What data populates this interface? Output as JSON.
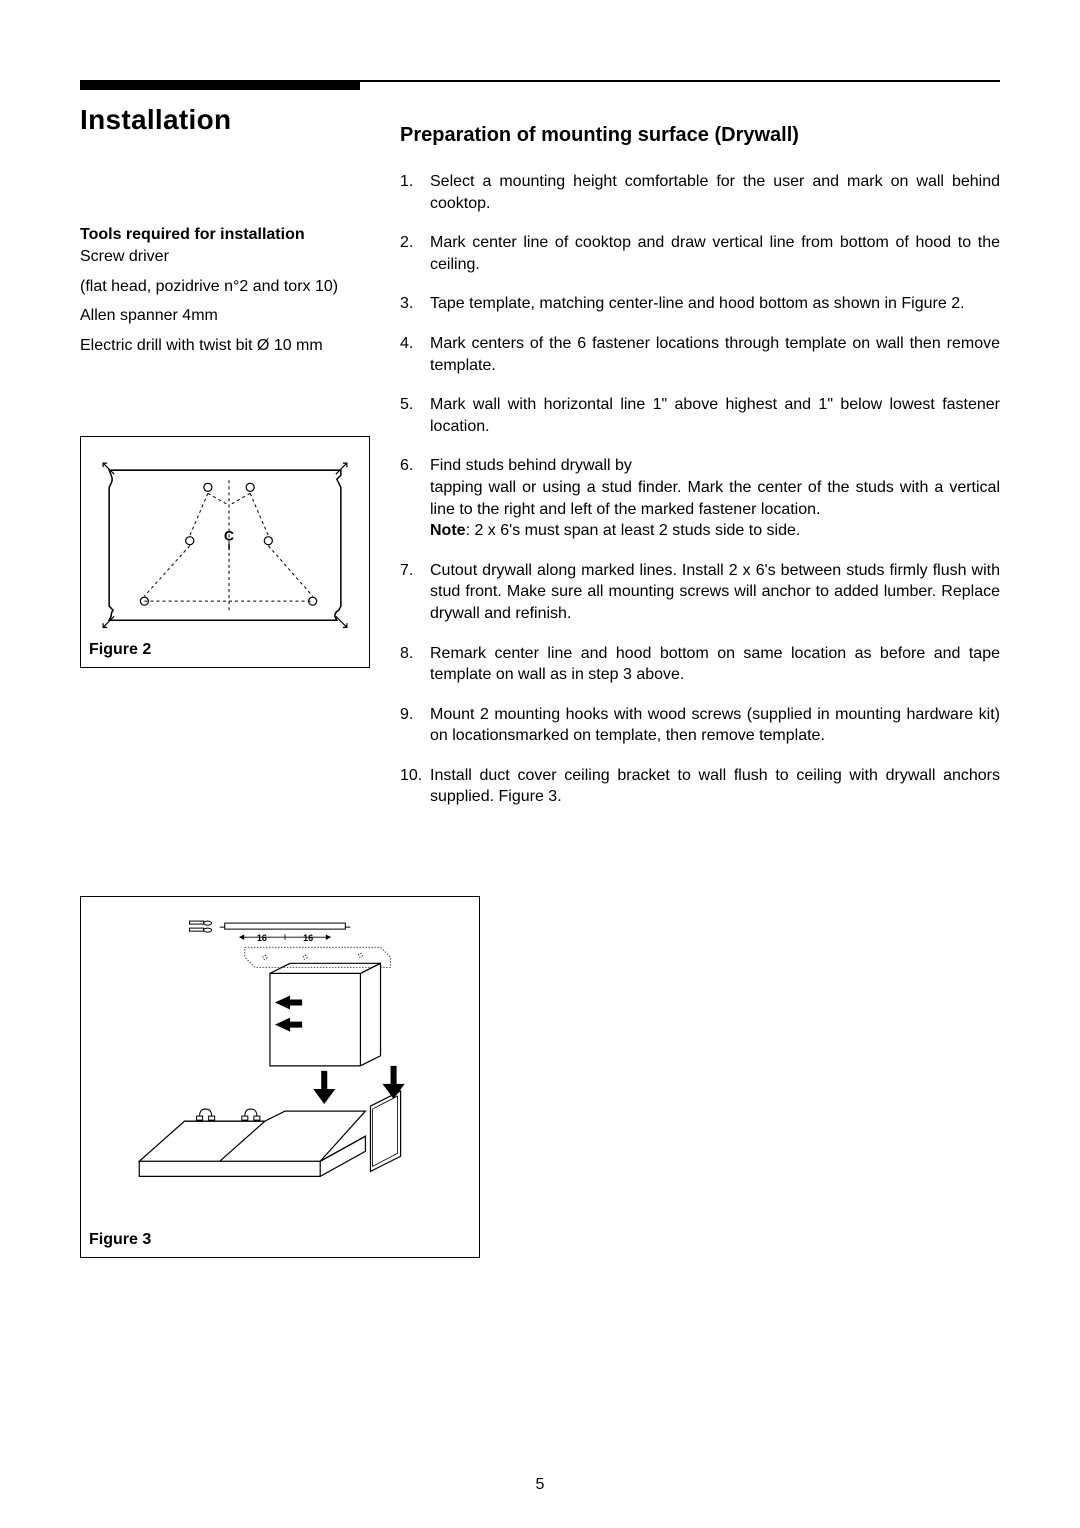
{
  "page_title": "Installation",
  "tools_section": {
    "heading": "Tools required for installation",
    "lines": [
      "Screw driver",
      "(flat head, pozidrive n°2 and torx 10)",
      "Allen spanner 4mm",
      "Electric drill with twist bit Ø 10 mm"
    ]
  },
  "figure2_caption": "Figure 2",
  "figure3_caption": "Figure 3",
  "preparation": {
    "heading": "Preparation of mounting surface (Drywall)",
    "steps": [
      "Select a mounting height comfortable for the user and mark on wall behind cooktop.",
      "Mark center line of cooktop and draw vertical line from bottom of hood to the ceiling.",
      "Tape template, matching center-line and hood bottom as shown in Figure 2.",
      "Mark centers of the 6 fastener locations through template on wall then remove template.",
      "Mark wall with horizontal line 1\" above highest and 1\" below lowest fastener location.",
      "Find studs behind drywall by\ntapping wall or using a stud finder. Mark the center of the studs with a vertical line to the right and left of the marked fastener location.\n<span class=\"note-label\">Note</span>: 2 x 6's must span at least 2 studs side to side.",
      "Cutout drywall along marked lines. Install 2 x 6's between studs firmly flush with stud front. Make sure all mounting screws will anchor to added lumber.   Replace drywall and refinish.",
      "Remark center line and hood bottom on same location as before and tape template on wall as in step 3 above.",
      "Mount 2 mounting hooks with wood screws (supplied in mounting hardware kit) on locationsmarked on template, then remove template.",
      "Install duct cover ceiling bracket to wall flush to ceiling with drywall anchors supplied. Figure 3."
    ]
  },
  "page_number": "5",
  "colors": {
    "text": "#000000",
    "background": "#ffffff",
    "rule": "#000000",
    "figure_border": "#000000"
  },
  "typography": {
    "body_fontsize": 16,
    "title_fontsize": 28,
    "section_heading_fontsize": 20,
    "caption_fontsize": 16
  },
  "figure2": {
    "centerline_label": "C",
    "hole_count": 6
  },
  "figure3": {
    "dimension_labels": [
      "16",
      "16"
    ]
  }
}
